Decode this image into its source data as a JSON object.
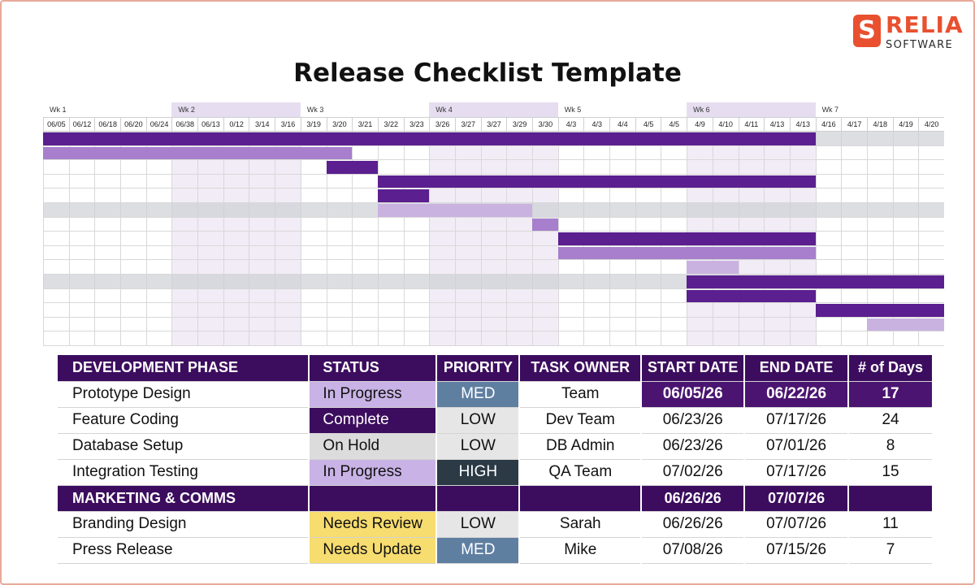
{
  "logo": {
    "mark": "S",
    "name": "RELIA",
    "sub": "SOFTWARE"
  },
  "title": "Release Checklist Template",
  "gantt": {
    "weeks": [
      "Wk 1",
      "Wk 2",
      "Wk 3",
      "Wk 4",
      "Wk 5",
      "Wk 6",
      "Wk 7"
    ],
    "days": [
      "06/05",
      "06/12",
      "06/18",
      "06/20",
      "06/24",
      "06/38",
      "06/13",
      "0/12",
      "3/14",
      "3/16",
      "3/19",
      "3/20",
      "3/21",
      "3/22",
      "3/23",
      "3/26",
      "3/27",
      "3/27",
      "3/29",
      "3/30",
      "4/3",
      "4/3",
      "4/4",
      "4/5",
      "4/5",
      "4/9",
      "4/10",
      "4/11",
      "4/13",
      "4/13",
      "4/16",
      "4/17",
      "4/18",
      "4/19",
      "4/20"
    ],
    "rows": [
      {
        "fill": "grey",
        "bar": [
          0,
          30,
          "dark"
        ]
      },
      {
        "fill": "none",
        "bar": [
          0,
          12,
          "light"
        ]
      },
      {
        "fill": "none",
        "bar": [
          11,
          13,
          "dark"
        ]
      },
      {
        "fill": "none",
        "bar": [
          13,
          30,
          "dark"
        ]
      },
      {
        "fill": "none",
        "bar": [
          13,
          15,
          "dark"
        ]
      },
      {
        "fill": "grey",
        "bar": [
          13,
          19,
          "pale"
        ]
      },
      {
        "fill": "none",
        "bar": [
          19,
          20,
          "light"
        ]
      },
      {
        "fill": "none",
        "bar": [
          20,
          30,
          "dark"
        ]
      },
      {
        "fill": "none",
        "bar": [
          20,
          30,
          "light"
        ]
      },
      {
        "fill": "none",
        "bar": [
          25,
          27,
          "pale"
        ]
      },
      {
        "fill": "grey",
        "bar": [
          25,
          35,
          "dark"
        ]
      },
      {
        "fill": "none",
        "bar": [
          25,
          30,
          "dark"
        ]
      },
      {
        "fill": "none",
        "bar": [
          30,
          35,
          "dark"
        ]
      },
      {
        "fill": "none",
        "bar": [
          32,
          35,
          "pale"
        ]
      },
      {
        "fill": "none",
        "bar": null
      }
    ]
  },
  "table": {
    "headers": [
      "DEVELOPMENT PHASE",
      "STATUS",
      "PRIORITY",
      "TASK OWNER",
      "START DATE",
      "END DATE",
      "# of Days"
    ],
    "rows": [
      {
        "phase": "Prototype Design",
        "status": "In Progress",
        "status_class": "status-inprogress",
        "priority": "MED",
        "priority_class": "pr-med",
        "owner": "Team",
        "start": "06/05/26",
        "end": "06/22/26",
        "days": "17",
        "highlight": true
      },
      {
        "phase": "Feature Coding",
        "status": "Complete",
        "status_class": "status-complete",
        "priority": "LOW",
        "priority_class": "pr-low",
        "owner": "Dev Team",
        "start": "06/23/26",
        "end": "07/17/26",
        "days": "24",
        "highlight": false
      },
      {
        "phase": "Database Setup",
        "status": "On Hold",
        "status_class": "status-onhold",
        "priority": "LOW",
        "priority_class": "pr-low",
        "owner": "DB Admin",
        "start": "06/23/26",
        "end": "07/01/26",
        "days": "8",
        "highlight": false
      },
      {
        "phase": "Integration Testing",
        "status": "In Progress",
        "status_class": "status-inprogress",
        "priority": "HIGH",
        "priority_class": "pr-high",
        "owner": "QA Team",
        "start": "07/02/26",
        "end": "07/17/26",
        "days": "15",
        "highlight": false
      }
    ],
    "section": {
      "label": "MARKETING & COMMS",
      "start": "06/26/26",
      "end": "07/07/26"
    },
    "rows2": [
      {
        "phase": "Branding Design",
        "status": "Needs Review",
        "status_class": "status-review",
        "priority": "LOW",
        "priority_class": "pr-low",
        "owner": "Sarah",
        "start": "06/26/26",
        "end": "07/07/26",
        "days": "11"
      },
      {
        "phase": "Press Release",
        "status": "Needs Update",
        "status_class": "status-review",
        "priority": "MED",
        "priority_class": "pr-med",
        "owner": "Mike",
        "start": "07/08/26",
        "end": "07/15/26",
        "days": "7"
      }
    ]
  }
}
